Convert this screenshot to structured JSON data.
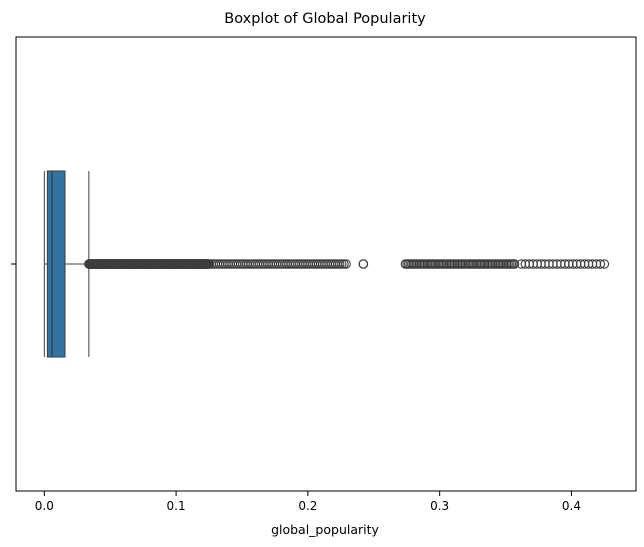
{
  "chart_data": {
    "type": "boxplot",
    "orientation": "horizontal",
    "title": "Boxplot of Global Popularity",
    "xlabel": "global_popularity",
    "ylabel": "",
    "xlim": [
      -0.0215,
      0.449
    ],
    "x_ticks": [
      0.0,
      0.1,
      0.2,
      0.3,
      0.4
    ],
    "x_tick_labels": [
      "0.0",
      "0.1",
      "0.2",
      "0.3",
      "0.4"
    ],
    "grid": false,
    "box": {
      "whisker_low": 0.0,
      "q1": 0.0023,
      "median": 0.0058,
      "q3": 0.0157,
      "whisker_high": 0.0338,
      "color": "#3274a1"
    },
    "outlier_ranges": [
      [
        0.0338,
        0.125,
        0.00025
      ],
      [
        0.125,
        0.23,
        0.0016
      ],
      [
        0.274,
        0.357,
        0.0012
      ],
      [
        0.362,
        0.426,
        0.003
      ]
    ],
    "outlier_points": [
      0.242,
      0.2422
    ]
  }
}
